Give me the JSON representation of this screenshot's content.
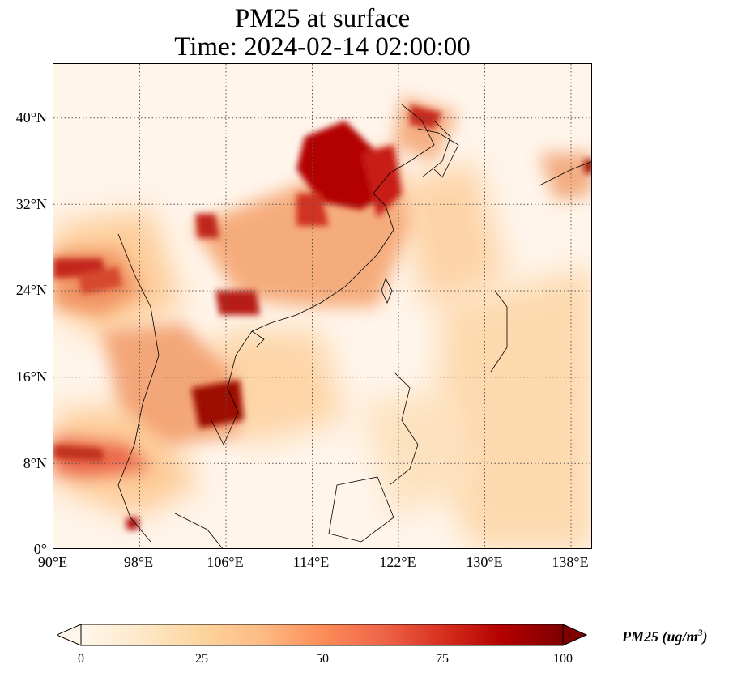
{
  "title": {
    "line1": "PM25 at surface",
    "line2": "Time: 2024-02-14 02:00:00"
  },
  "map": {
    "lon_ticks": [
      "90°E",
      "98°E",
      "106°E",
      "114°E",
      "122°E",
      "130°E",
      "138°E"
    ],
    "lat_ticks": [
      "40°N",
      "32°N",
      "24°N",
      "16°N",
      "8°N",
      "0°"
    ],
    "lon_range": [
      90,
      140
    ],
    "lat_range": [
      0,
      45
    ],
    "gridlines": "dotted"
  },
  "colorbar": {
    "ticks": [
      "0",
      "25",
      "50",
      "75",
      "100"
    ],
    "range": [
      0,
      100
    ],
    "label_main": "PM25 (ug/m",
    "label_sup": "3",
    "label_close": ")",
    "colormap": "OrRd",
    "extend": "both",
    "colors": {
      "low": "#fff7ec",
      "mid_low": "#fdd49e",
      "mid": "#fc8d59",
      "mid_high": "#d7301f",
      "high": "#7f0000"
    }
  }
}
